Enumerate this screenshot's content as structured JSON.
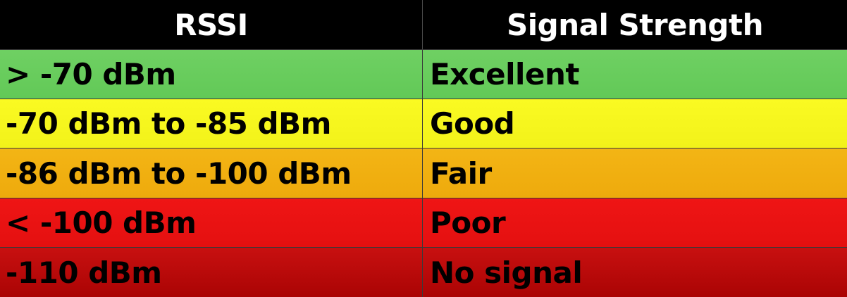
{
  "table": {
    "headers": [
      "RSSI",
      "Signal Strength"
    ],
    "rows": [
      {
        "rssi": "> -70 dBm",
        "strength": "Excellent",
        "color": "#66cc5a"
      },
      {
        "rssi": "-70 dBm to -85 dBm",
        "strength": "Good",
        "color": "#f7f71e"
      },
      {
        "rssi": "-86 dBm to -100 dBm",
        "strength": "Fair",
        "color": "#f0b010"
      },
      {
        "rssi": "< -100 dBm",
        "strength": "Poor",
        "color": "#ea1212"
      },
      {
        "rssi": "-110 dBm",
        "strength": "No signal",
        "color": "#b80808"
      }
    ]
  }
}
